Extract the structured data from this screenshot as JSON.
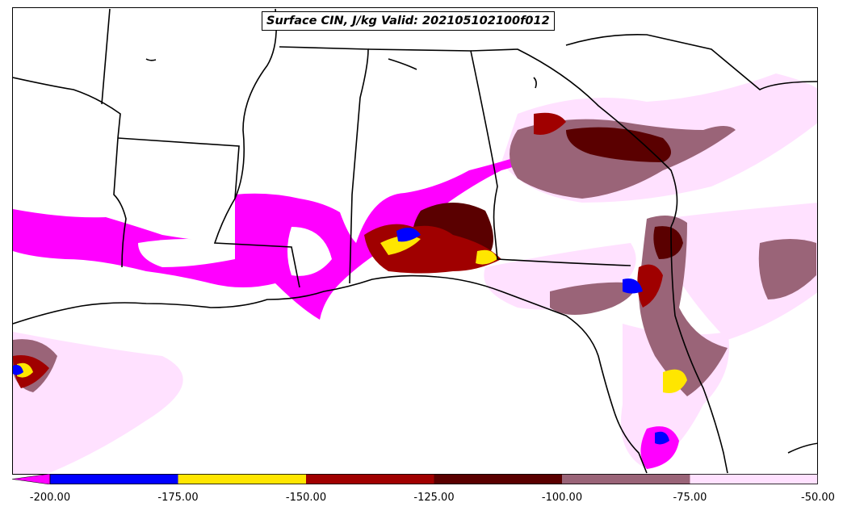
{
  "title": "Surface CIN, J/kg Valid: 202105102100f012",
  "colorbar": {
    "bins": [
      {
        "from": -200,
        "to": -175,
        "color": "#0000ff"
      },
      {
        "from": -175,
        "to": -150,
        "color": "#ffe600"
      },
      {
        "from": -150,
        "to": -125,
        "color": "#a00000"
      },
      {
        "from": -125,
        "to": -100,
        "color": "#5a0000"
      },
      {
        "from": -100,
        "to": -75,
        "color": "#9a6478"
      },
      {
        "from": -75,
        "to": -50,
        "color": "#ffe1ff"
      }
    ],
    "extend_color": "#ff00ff",
    "tick_labels": [
      "-200.00",
      "-175.00",
      "-150.00",
      "-125.00",
      "-100.00",
      "-75.00",
      "-50.00"
    ]
  },
  "colors": {
    "cin_lt_200": "#ff00ff",
    "cin_200_175": "#0000ff",
    "cin_175_150": "#ffe600",
    "cin_150_125": "#a00000",
    "cin_125_100": "#5a0000",
    "cin_100_75": "#9a6478",
    "cin_75_50": "#ffe1ff",
    "borders": "#000000"
  }
}
